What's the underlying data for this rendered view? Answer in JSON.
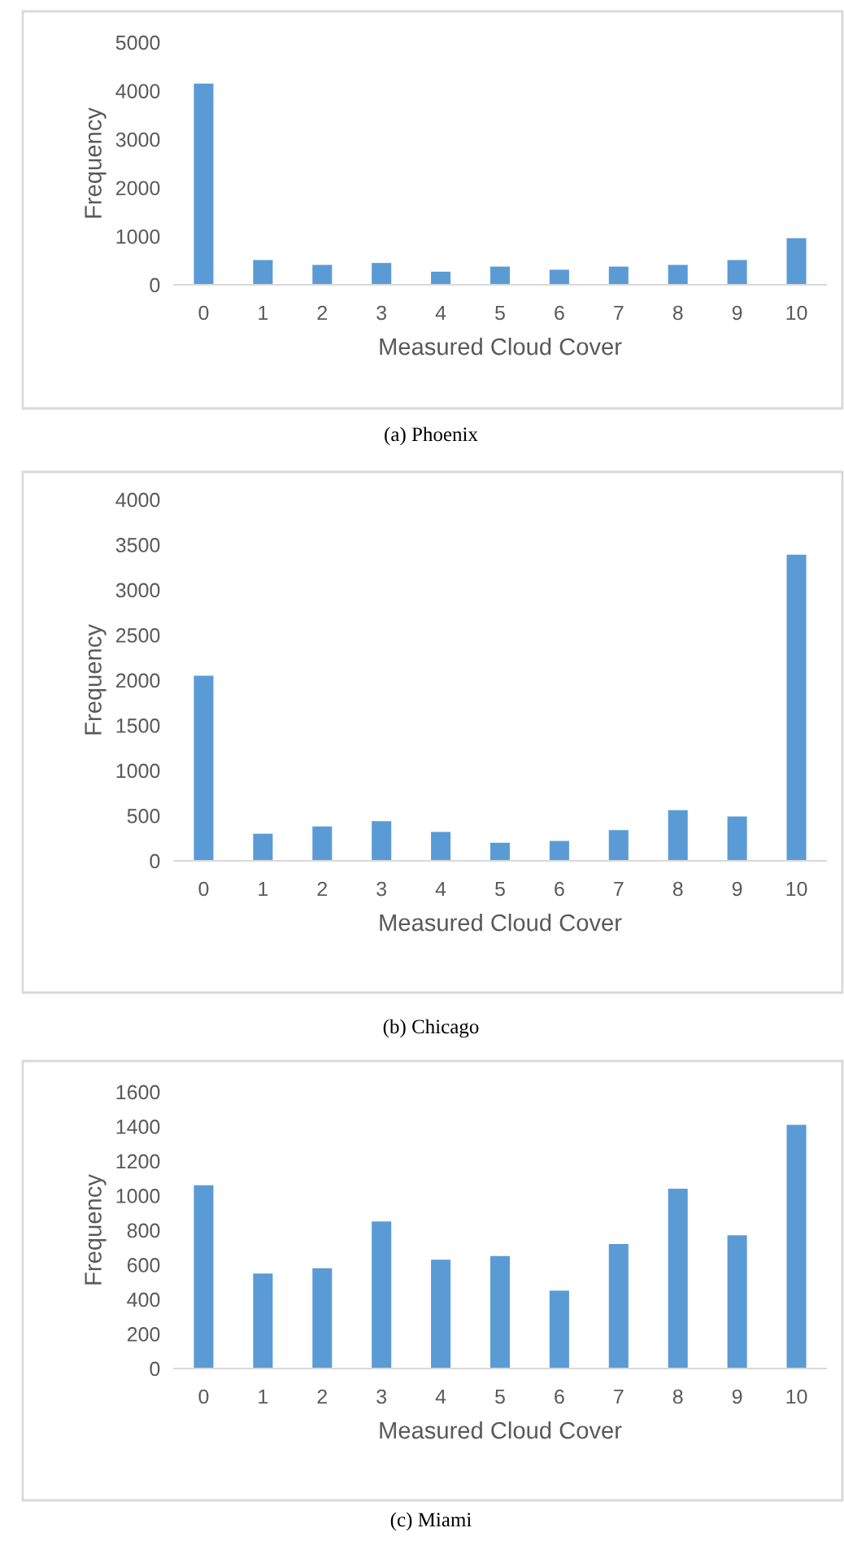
{
  "chart_data": [
    {
      "type": "bar",
      "categories": [
        "0",
        "1",
        "2",
        "3",
        "4",
        "5",
        "6",
        "7",
        "8",
        "9",
        "10"
      ],
      "values": [
        4150,
        510,
        410,
        450,
        270,
        375,
        310,
        375,
        410,
        510,
        960
      ],
      "color": "#5b9bd5",
      "ylim": [
        0,
        5000
      ],
      "yticks": [
        0,
        1000,
        2000,
        3000,
        4000,
        5000
      ],
      "xlabel": "Measured Cloud Cover",
      "ylabel": "Frequency",
      "annotations": [
        "(a) Phoenix"
      ]
    },
    {
      "type": "bar",
      "categories": [
        "0",
        "1",
        "2",
        "3",
        "4",
        "5",
        "6",
        "7",
        "8",
        "9",
        "10"
      ],
      "values": [
        2050,
        300,
        380,
        440,
        320,
        200,
        220,
        340,
        560,
        490,
        3390
      ],
      "color": "#5b9bd5",
      "ylim": [
        0,
        4000
      ],
      "yticks": [
        0,
        500,
        1000,
        1500,
        2000,
        2500,
        3000,
        3500,
        4000
      ],
      "xlabel": "Measured Cloud Cover",
      "ylabel": "Frequency",
      "annotations": [
        "(b) Chicago"
      ]
    },
    {
      "type": "bar",
      "categories": [
        "0",
        "1",
        "2",
        "3",
        "4",
        "5",
        "6",
        "7",
        "8",
        "9",
        "10"
      ],
      "values": [
        1060,
        550,
        580,
        850,
        630,
        650,
        450,
        720,
        1040,
        770,
        1410
      ],
      "color": "#5b9bd5",
      "ylim": [
        0,
        1600
      ],
      "yticks": [
        0,
        200,
        400,
        600,
        800,
        1000,
        1200,
        1400,
        1600
      ],
      "xlabel": "Measured Cloud Cover",
      "ylabel": "Frequency",
      "annotations": [
        "(c) Miami"
      ]
    }
  ]
}
